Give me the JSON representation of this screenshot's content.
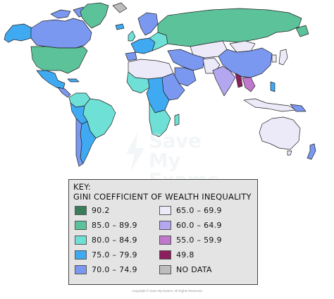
{
  "key": {
    "title": "KEY:",
    "subtitle": "GINI COEFFICIENT OF WEALTH INEQUALITY",
    "items": [
      {
        "label": "90.2",
        "color": "#3a7d5b"
      },
      {
        "label": "85.0 – 89.9",
        "color": "#5cc29a"
      },
      {
        "label": "80.0 – 84.9",
        "color": "#6fe0d6"
      },
      {
        "label": "75.0 – 79.9",
        "color": "#3fa9f2"
      },
      {
        "label": "70.0 – 74.9",
        "color": "#7b98f0"
      },
      {
        "label": "65.0 – 69.9",
        "color": "#eceaf9"
      },
      {
        "label": "60.0 – 64.9",
        "color": "#b5a7ef"
      },
      {
        "label": "55.0 – 59.9",
        "color": "#c078cc"
      },
      {
        "label": "49.8",
        "color": "#8b1e5c"
      },
      {
        "label": "NO DATA",
        "color": "#bdbdbd"
      }
    ]
  },
  "watermark": {
    "line1": "Save My",
    "line2": "Exams"
  },
  "copyright": "Copyright © Save My Exams. All Rights Reserved"
}
